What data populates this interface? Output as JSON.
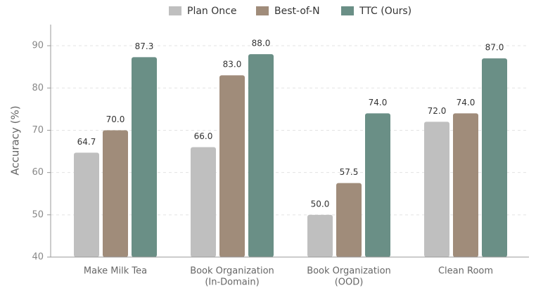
{
  "chart_data": {
    "type": "bar",
    "categories": [
      [
        "Make Milk Tea"
      ],
      [
        "Book Organization",
        "(In-Domain)"
      ],
      [
        "Book Organization",
        "(OOD)"
      ],
      [
        "Clean Room"
      ]
    ],
    "ylabel": "Accuracy (%)",
    "series": [
      {
        "name": "Plan Once",
        "color": "#bfbfbf",
        "values": [
          64.7,
          66,
          50,
          72
        ],
        "value_labels": [
          "64.7",
          "66.0",
          "50.0",
          "72.0"
        ]
      },
      {
        "name": "Best-of-N",
        "color": "#a08c7a",
        "values": [
          70,
          83,
          57.5,
          74
        ],
        "value_labels": [
          "70.0",
          "83.0",
          "57.5",
          "74.0"
        ]
      },
      {
        "name": "TTC (Ours)",
        "color": "#6a8f86",
        "values": [
          87.3,
          88,
          74,
          87
        ],
        "value_labels": [
          "87.3",
          "88.0",
          "74.0",
          "87.0"
        ]
      }
    ],
    "ylim": [
      40,
      95
    ],
    "yticks": [
      40,
      50,
      60,
      70,
      80,
      90
    ],
    "grid": true,
    "legend": "top"
  }
}
